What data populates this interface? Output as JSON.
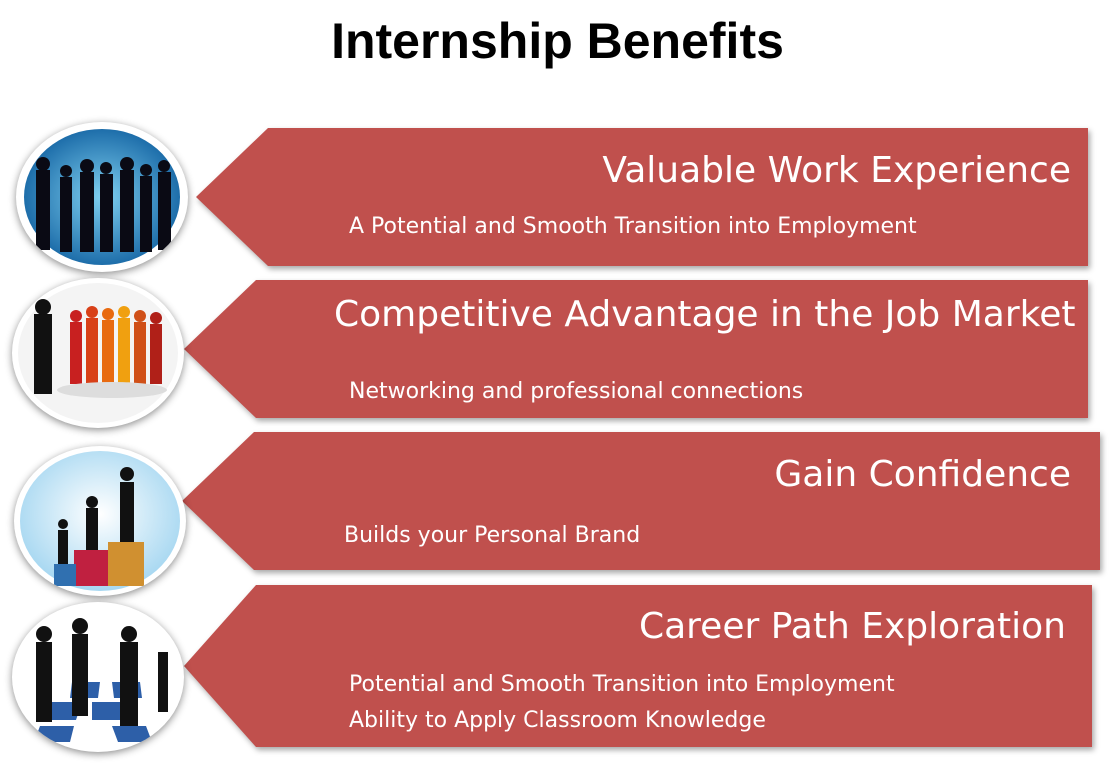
{
  "title": "Internship Benefits",
  "colors": {
    "banner": "#c0504d",
    "text": "#ffffff"
  },
  "items": [
    {
      "heading": "Valuable Work Experience",
      "details": [
        "A Potential and Smooth Transition into Employment"
      ],
      "icon": "business-people-handshake-icon"
    },
    {
      "heading": "Competitive Advantage in the Job Market",
      "details": [
        "Networking and professional connections"
      ],
      "icon": "team-crowd-icon"
    },
    {
      "heading": "Gain Confidence",
      "details": [
        "Builds your Personal Brand"
      ],
      "icon": "winners-podium-icon"
    },
    {
      "heading": "Career Path Exploration",
      "details": [
        "Potential and Smooth Transition into Employment",
        "Ability to Apply Classroom Knowledge"
      ],
      "icon": "business-people-chessboard-icon"
    }
  ]
}
